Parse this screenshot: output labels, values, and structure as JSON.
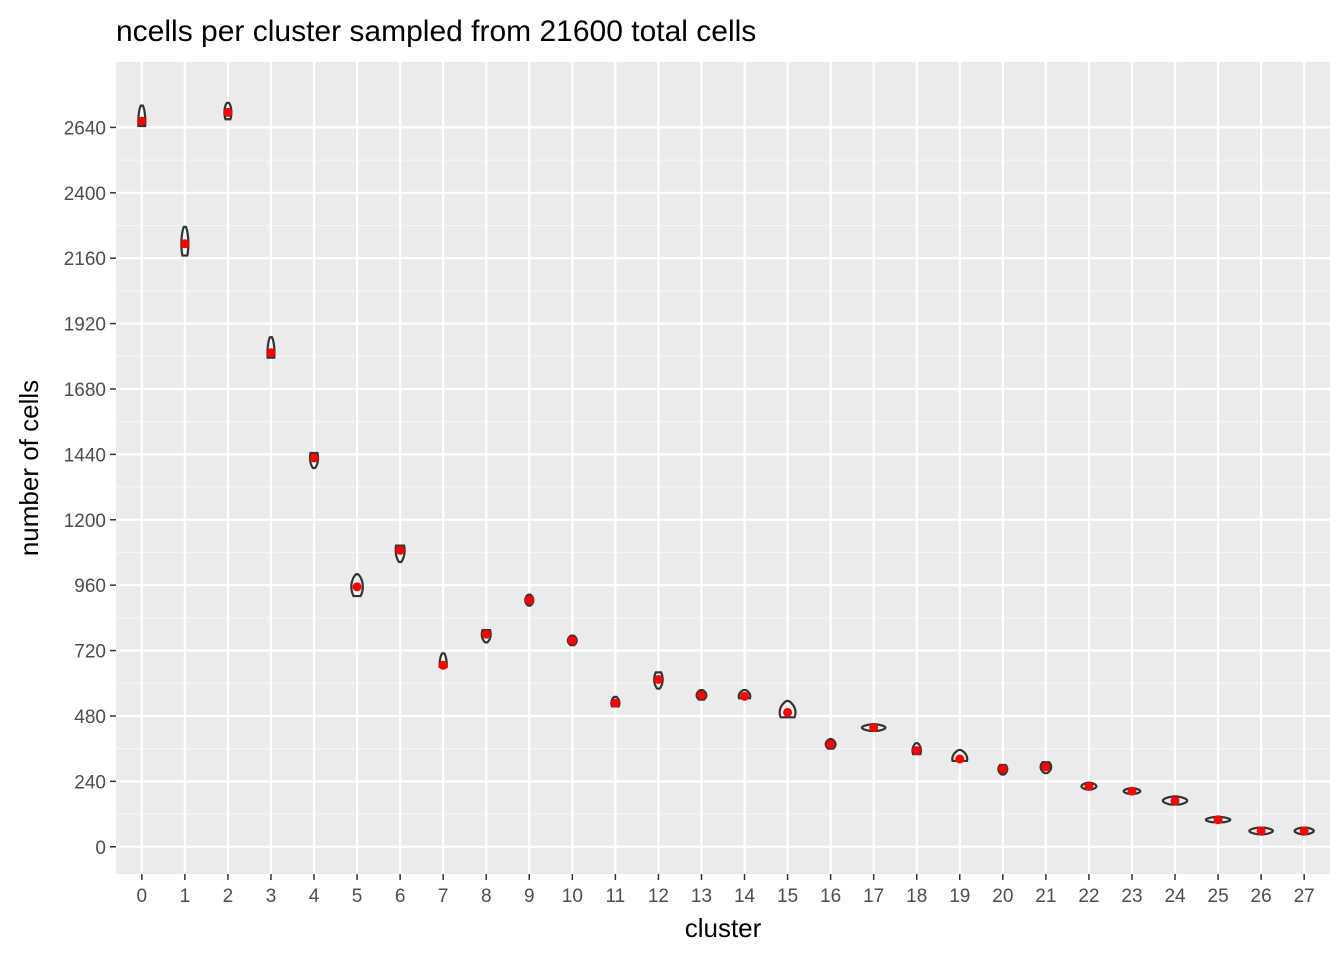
{
  "chart_data": {
    "type": "violin",
    "title": "ncells per cluster sampled from 21600 total cells",
    "xlabel": "cluster",
    "ylabel": "number of cells",
    "categories": [
      "0",
      "1",
      "2",
      "3",
      "4",
      "5",
      "6",
      "7",
      "8",
      "9",
      "10",
      "11",
      "12",
      "13",
      "14",
      "15",
      "16",
      "17",
      "18",
      "19",
      "20",
      "21",
      "22",
      "23",
      "24",
      "25",
      "26",
      "27"
    ],
    "y_ticks": [
      0,
      240,
      480,
      720,
      960,
      1200,
      1440,
      1680,
      1920,
      2160,
      2400,
      2640
    ],
    "ylim": [
      -100,
      2880
    ],
    "grid": true,
    "series": [
      {
        "mean_values": [
          2663,
          2213,
          2695,
          1813,
          1427,
          954,
          1088,
          666,
          780,
          905,
          757,
          527,
          614,
          556,
          552,
          493,
          376,
          437,
          353,
          322,
          285,
          293,
          222,
          204,
          169,
          99,
          58,
          58
        ],
        "min_values": [
          2645,
          2170,
          2670,
          1795,
          1390,
          920,
          1045,
          660,
          750,
          885,
          740,
          515,
          580,
          540,
          545,
          475,
          360,
          425,
          340,
          315,
          265,
          270,
          210,
          195,
          155,
          90,
          45,
          45
        ],
        "max_values": [
          2720,
          2275,
          2730,
          1870,
          1445,
          1000,
          1105,
          710,
          795,
          925,
          775,
          550,
          640,
          575,
          575,
          535,
          395,
          450,
          380,
          355,
          300,
          310,
          235,
          215,
          185,
          110,
          70,
          70
        ],
        "widths": [
          0.1,
          0.1,
          0.1,
          0.1,
          0.14,
          0.22,
          0.16,
          0.12,
          0.16,
          0.14,
          0.16,
          0.14,
          0.15,
          0.18,
          0.22,
          0.32,
          0.18,
          0.5,
          0.15,
          0.3,
          0.16,
          0.2,
          0.3,
          0.34,
          0.52,
          0.52,
          0.5,
          0.4
        ],
        "point_color": "#ff0000",
        "violin_stroke": "#333333"
      }
    ],
    "colors": {
      "panel_background": "#ebebeb",
      "grid_major": "#ffffff",
      "grid_minor": "#f5f5f5",
      "tick_text": "#4d4d4d"
    }
  }
}
